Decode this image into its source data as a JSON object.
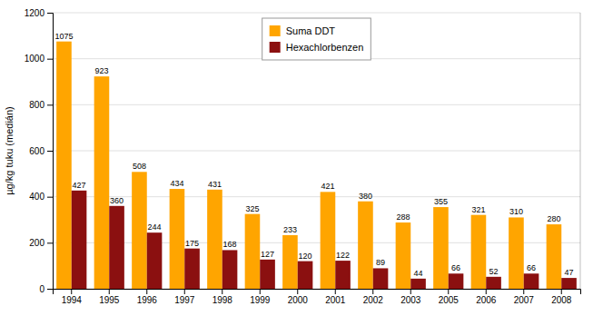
{
  "chart_data": {
    "type": "bar",
    "categories": [
      "1994",
      "1995",
      "1996",
      "1997",
      "1998",
      "1999",
      "2000",
      "2001",
      "2002",
      "2003",
      "2005",
      "2006",
      "2007",
      "2008"
    ],
    "series": [
      {
        "name": "Suma DDT",
        "color": "#FFA500",
        "values": [
          1075,
          923,
          508,
          434,
          431,
          325,
          233,
          421,
          380,
          288,
          355,
          321,
          310,
          280
        ]
      },
      {
        "name": "Hexachlorbenzen",
        "color": "#8B1010",
        "values": [
          427,
          360,
          244,
          175,
          168,
          127,
          120,
          122,
          89,
          44,
          66,
          52,
          66,
          47
        ]
      }
    ],
    "ylabel": "µg/kg tuku (medián)",
    "ylim": [
      0,
      1200
    ],
    "yticks": [
      0,
      200,
      400,
      600,
      800,
      1000,
      1200
    ],
    "grid": true,
    "legend": "upper center",
    "data_labels": true
  }
}
